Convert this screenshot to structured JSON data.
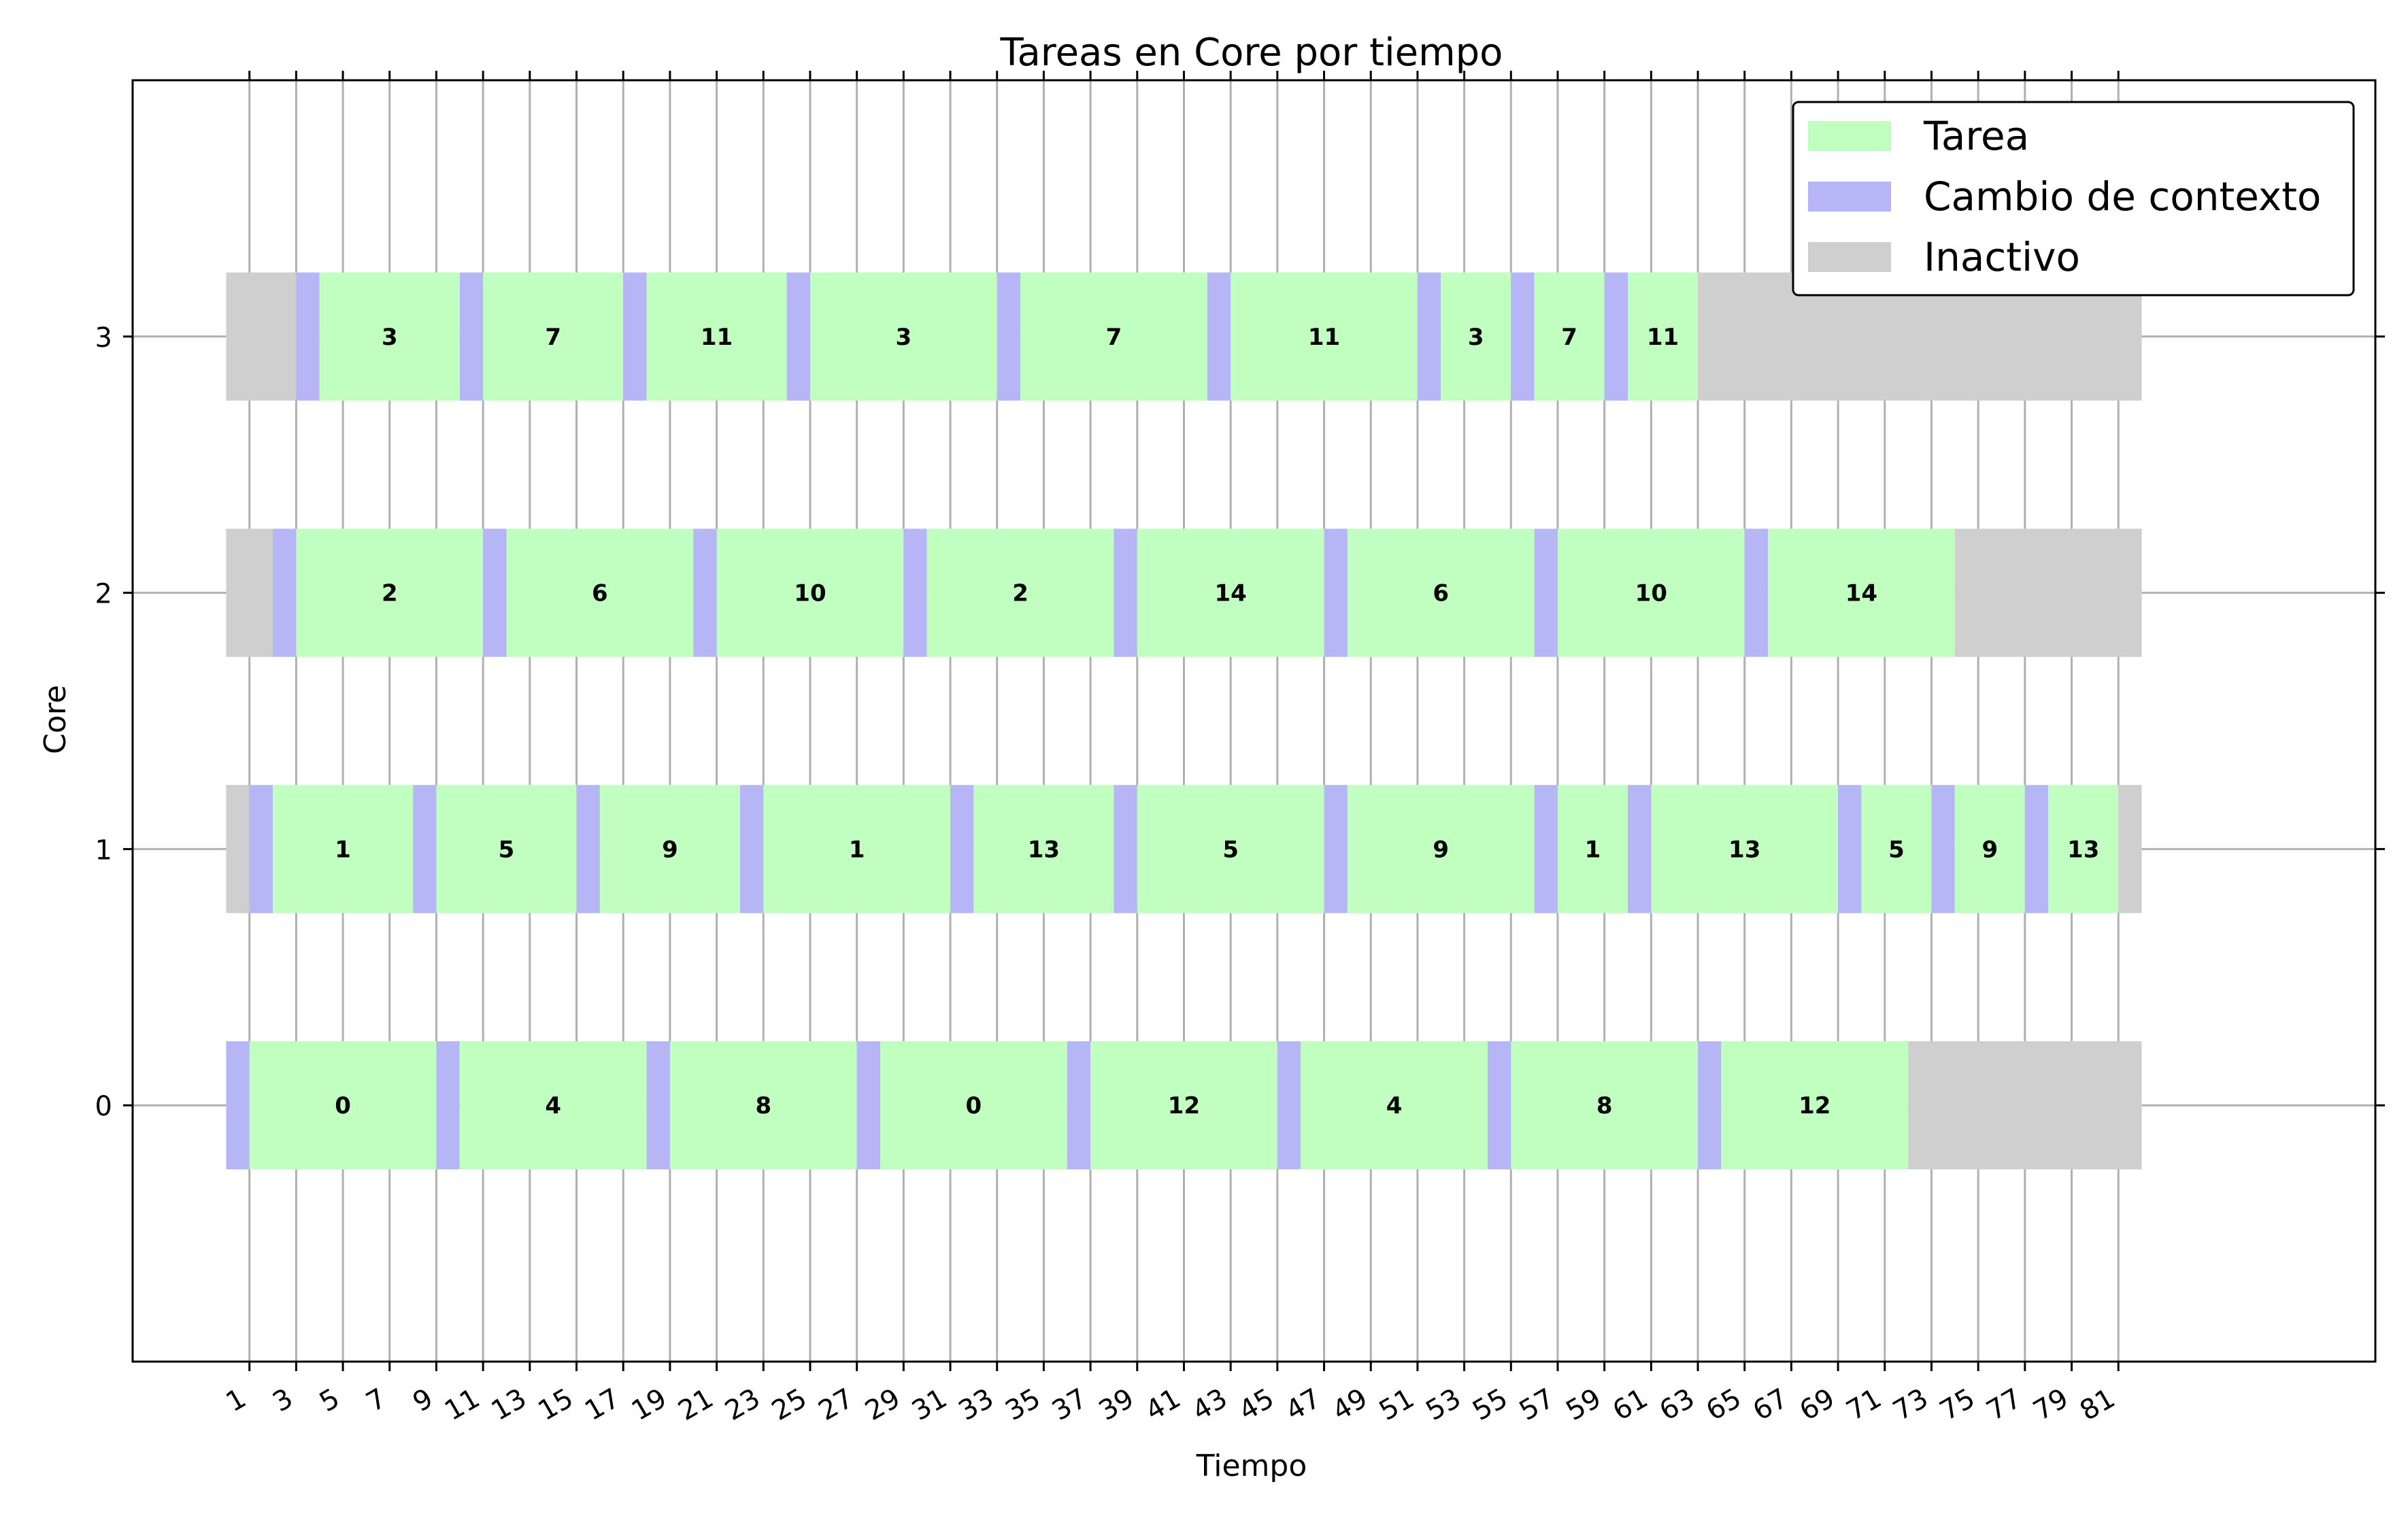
{
  "chart_data": {
    "type": "gantt",
    "title": "Tareas en Core por tiempo",
    "xlabel": "Tiempo",
    "ylabel": "Core",
    "xlim": [
      -4,
      92
    ],
    "ylim": [
      -1,
      4
    ],
    "x_ticks": [
      1,
      3,
      5,
      7,
      9,
      11,
      13,
      15,
      17,
      19,
      21,
      23,
      25,
      27,
      29,
      31,
      33,
      35,
      37,
      39,
      41,
      43,
      45,
      47,
      49,
      51,
      53,
      55,
      57,
      59,
      61,
      63,
      65,
      67,
      69,
      71,
      73,
      75,
      77,
      79,
      81
    ],
    "y_ticks": [
      0,
      1,
      2,
      3
    ],
    "grid": true,
    "legend_position": "upper right",
    "colors": {
      "task": "#c1ffc1",
      "context_switch": "#b6b6f6",
      "idle": "#cfcfcf",
      "grid": "#b0b0b0"
    },
    "legend": [
      {
        "key": "task",
        "label": "Tarea"
      },
      {
        "key": "context_switch",
        "label": "Cambio de contexto"
      },
      {
        "key": "idle",
        "label": "Inactivo"
      }
    ],
    "cores": [
      {
        "core": 0,
        "segments": [
          {
            "type": "context_switch",
            "start": 0,
            "end": 1
          },
          {
            "type": "task",
            "start": 1,
            "end": 9,
            "label": "0"
          },
          {
            "type": "context_switch",
            "start": 9,
            "end": 10
          },
          {
            "type": "task",
            "start": 10,
            "end": 18,
            "label": "4"
          },
          {
            "type": "context_switch",
            "start": 18,
            "end": 19
          },
          {
            "type": "task",
            "start": 19,
            "end": 27,
            "label": "8"
          },
          {
            "type": "context_switch",
            "start": 27,
            "end": 28
          },
          {
            "type": "task",
            "start": 28,
            "end": 36,
            "label": "0"
          },
          {
            "type": "context_switch",
            "start": 36,
            "end": 37
          },
          {
            "type": "task",
            "start": 37,
            "end": 45,
            "label": "12"
          },
          {
            "type": "context_switch",
            "start": 45,
            "end": 46
          },
          {
            "type": "task",
            "start": 46,
            "end": 54,
            "label": "4"
          },
          {
            "type": "context_switch",
            "start": 54,
            "end": 55
          },
          {
            "type": "task",
            "start": 55,
            "end": 63,
            "label": "8"
          },
          {
            "type": "context_switch",
            "start": 63,
            "end": 64
          },
          {
            "type": "task",
            "start": 64,
            "end": 72,
            "label": "12"
          },
          {
            "type": "idle",
            "start": 72,
            "end": 82
          }
        ]
      },
      {
        "core": 1,
        "segments": [
          {
            "type": "idle",
            "start": 0,
            "end": 1
          },
          {
            "type": "context_switch",
            "start": 1,
            "end": 2
          },
          {
            "type": "task",
            "start": 2,
            "end": 8,
            "label": "1"
          },
          {
            "type": "context_switch",
            "start": 8,
            "end": 9
          },
          {
            "type": "task",
            "start": 9,
            "end": 15,
            "label": "5"
          },
          {
            "type": "context_switch",
            "start": 15,
            "end": 16
          },
          {
            "type": "task",
            "start": 16,
            "end": 22,
            "label": "9"
          },
          {
            "type": "context_switch",
            "start": 22,
            "end": 23
          },
          {
            "type": "task",
            "start": 23,
            "end": 31,
            "label": "1"
          },
          {
            "type": "context_switch",
            "start": 31,
            "end": 32
          },
          {
            "type": "task",
            "start": 32,
            "end": 38,
            "label": "13"
          },
          {
            "type": "context_switch",
            "start": 38,
            "end": 39
          },
          {
            "type": "task",
            "start": 39,
            "end": 47,
            "label": "5"
          },
          {
            "type": "context_switch",
            "start": 47,
            "end": 48
          },
          {
            "type": "task",
            "start": 48,
            "end": 56,
            "label": "9"
          },
          {
            "type": "context_switch",
            "start": 56,
            "end": 57
          },
          {
            "type": "task",
            "start": 57,
            "end": 60,
            "label": "1"
          },
          {
            "type": "context_switch",
            "start": 60,
            "end": 61
          },
          {
            "type": "task",
            "start": 61,
            "end": 69,
            "label": "13"
          },
          {
            "type": "context_switch",
            "start": 69,
            "end": 70
          },
          {
            "type": "task",
            "start": 70,
            "end": 73,
            "label": "5"
          },
          {
            "type": "context_switch",
            "start": 73,
            "end": 74
          },
          {
            "type": "task",
            "start": 74,
            "end": 77,
            "label": "9"
          },
          {
            "type": "context_switch",
            "start": 77,
            "end": 78
          },
          {
            "type": "task",
            "start": 78,
            "end": 81,
            "label": "13"
          },
          {
            "type": "idle",
            "start": 81,
            "end": 82
          }
        ]
      },
      {
        "core": 2,
        "segments": [
          {
            "type": "idle",
            "start": 0,
            "end": 2
          },
          {
            "type": "context_switch",
            "start": 2,
            "end": 3
          },
          {
            "type": "task",
            "start": 3,
            "end": 11,
            "label": "2"
          },
          {
            "type": "context_switch",
            "start": 11,
            "end": 12
          },
          {
            "type": "task",
            "start": 12,
            "end": 20,
            "label": "6"
          },
          {
            "type": "context_switch",
            "start": 20,
            "end": 21
          },
          {
            "type": "task",
            "start": 21,
            "end": 29,
            "label": "10"
          },
          {
            "type": "context_switch",
            "start": 29,
            "end": 30
          },
          {
            "type": "task",
            "start": 30,
            "end": 38,
            "label": "2"
          },
          {
            "type": "context_switch",
            "start": 38,
            "end": 39
          },
          {
            "type": "task",
            "start": 39,
            "end": 47,
            "label": "14"
          },
          {
            "type": "context_switch",
            "start": 47,
            "end": 48
          },
          {
            "type": "task",
            "start": 48,
            "end": 56,
            "label": "6"
          },
          {
            "type": "context_switch",
            "start": 56,
            "end": 57
          },
          {
            "type": "task",
            "start": 57,
            "end": 65,
            "label": "10"
          },
          {
            "type": "context_switch",
            "start": 65,
            "end": 66
          },
          {
            "type": "task",
            "start": 66,
            "end": 74,
            "label": "14"
          },
          {
            "type": "idle",
            "start": 74,
            "end": 82
          }
        ]
      },
      {
        "core": 3,
        "segments": [
          {
            "type": "idle",
            "start": 0,
            "end": 3
          },
          {
            "type": "context_switch",
            "start": 3,
            "end": 4
          },
          {
            "type": "task",
            "start": 4,
            "end": 10,
            "label": "3"
          },
          {
            "type": "context_switch",
            "start": 10,
            "end": 11
          },
          {
            "type": "task",
            "start": 11,
            "end": 17,
            "label": "7"
          },
          {
            "type": "context_switch",
            "start": 17,
            "end": 18
          },
          {
            "type": "task",
            "start": 18,
            "end": 24,
            "label": "11"
          },
          {
            "type": "context_switch",
            "start": 24,
            "end": 25
          },
          {
            "type": "task",
            "start": 25,
            "end": 33,
            "label": "3"
          },
          {
            "type": "context_switch",
            "start": 33,
            "end": 34
          },
          {
            "type": "task",
            "start": 34,
            "end": 42,
            "label": "7"
          },
          {
            "type": "context_switch",
            "start": 42,
            "end": 43
          },
          {
            "type": "task",
            "start": 43,
            "end": 51,
            "label": "11"
          },
          {
            "type": "context_switch",
            "start": 51,
            "end": 52
          },
          {
            "type": "task",
            "start": 52,
            "end": 55,
            "label": "3"
          },
          {
            "type": "context_switch",
            "start": 55,
            "end": 56
          },
          {
            "type": "task",
            "start": 56,
            "end": 59,
            "label": "7"
          },
          {
            "type": "context_switch",
            "start": 59,
            "end": 60
          },
          {
            "type": "task",
            "start": 60,
            "end": 63,
            "label": "11"
          },
          {
            "type": "idle",
            "start": 63,
            "end": 82
          }
        ]
      }
    ]
  }
}
